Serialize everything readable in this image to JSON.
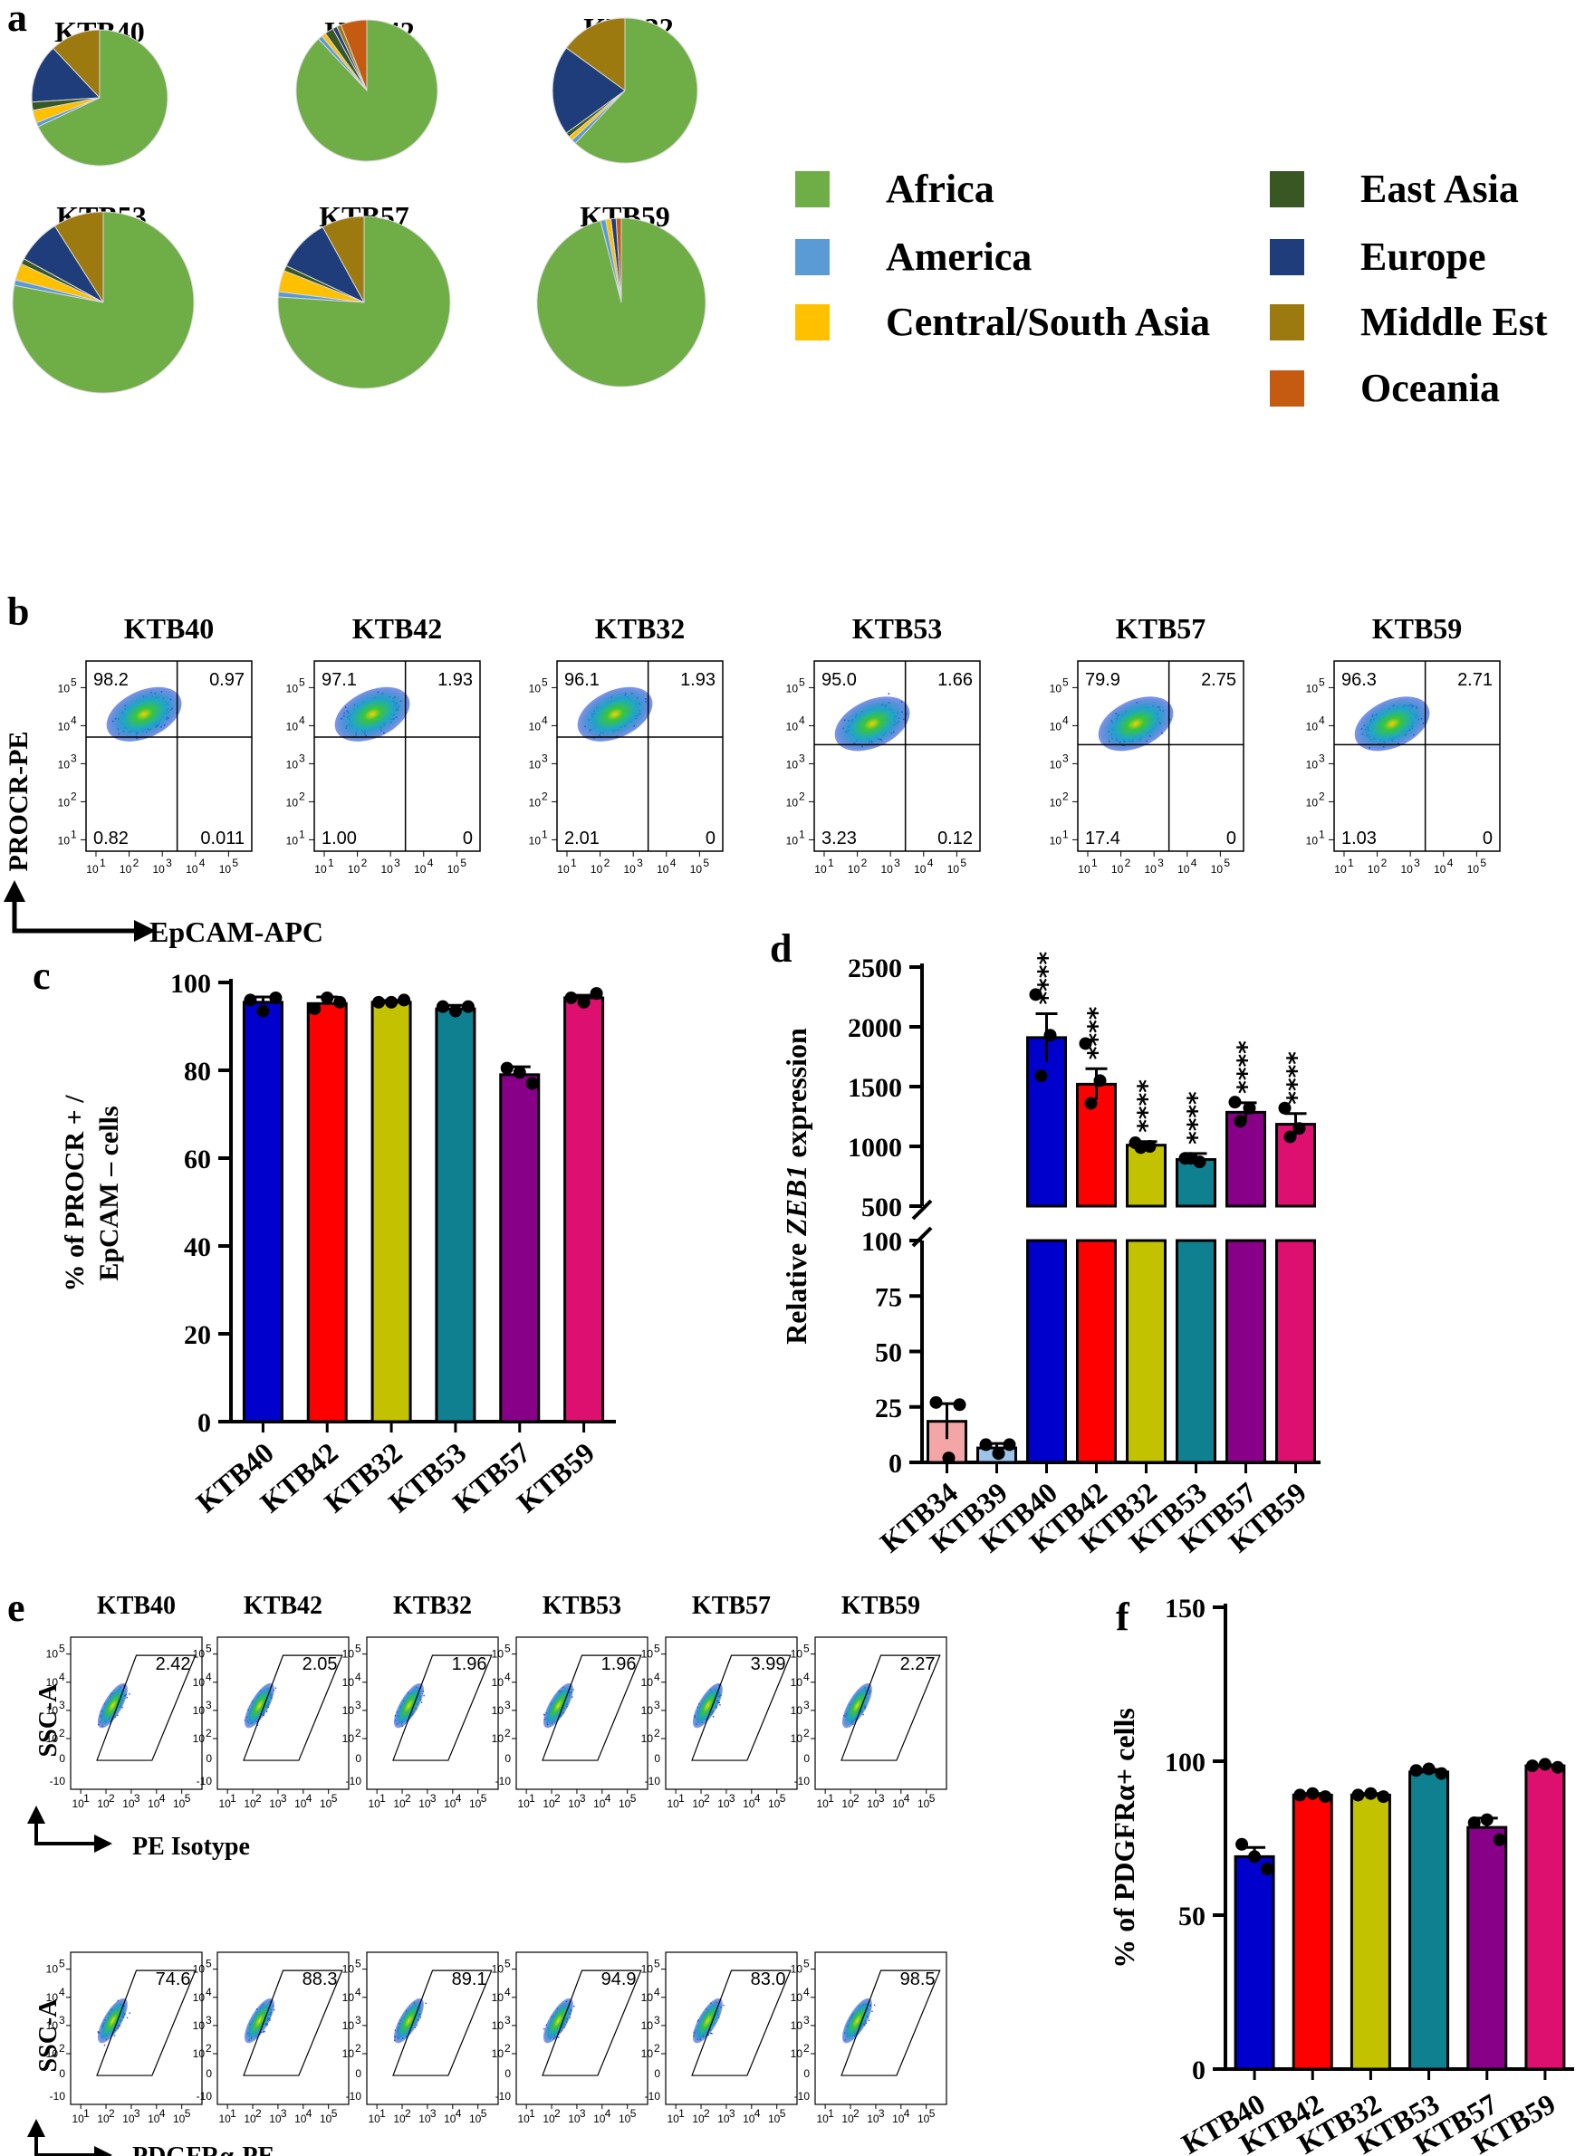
{
  "colors": {
    "Africa": "#6fad46",
    "America": "#5b9bd5",
    "Central/South Asia": "#ffc000",
    "East Asia": "#385723",
    "Europe": "#1f3d7a",
    "Middle Est": "#9c7a10",
    "Oceania": "#c55a11",
    "KTB40": "#0000cc",
    "KTB42": "#ff0000",
    "KTB32": "#c2c200",
    "KTB53": "#0f8090",
    "KTB57": "#880088",
    "KTB59": "#dd1070",
    "KTB34": "#f4a6a6",
    "KTB39": "#9dc3e6"
  },
  "panel_labels": {
    "a": "a",
    "b": "b",
    "c": "c",
    "d": "d",
    "e": "e",
    "f": "f"
  },
  "chart_data": [
    {
      "panel": "a",
      "type": "pie",
      "legend": [
        "Africa",
        "America",
        "Central/South Asia",
        "East Asia",
        "Europe",
        "Middle Est",
        "Oceania"
      ],
      "legend_placement": "right",
      "charts": [
        {
          "title": "KTB40",
          "values": {
            "Africa": 68,
            "America": 1,
            "Central/South Asia": 3,
            "East Asia": 2,
            "Europe": 14,
            "Middle Est": 12,
            "Oceania": 0
          }
        },
        {
          "title": "KTB42",
          "values": {
            "Africa": 88,
            "America": 1,
            "Central/South Asia": 1,
            "East Asia": 2,
            "Europe": 1,
            "Middle Est": 1,
            "Oceania": 6
          }
        },
        {
          "title": "KTB32",
          "values": {
            "Africa": 62,
            "America": 1,
            "Central/South Asia": 1,
            "East Asia": 1,
            "Europe": 20,
            "Middle Est": 15,
            "Oceania": 0
          }
        },
        {
          "title": "KTB53",
          "values": {
            "Africa": 78,
            "America": 1,
            "Central/South Asia": 3,
            "East Asia": 1,
            "Europe": 8,
            "Middle Est": 9,
            "Oceania": 0
          }
        },
        {
          "title": "KTB57",
          "values": {
            "Africa": 76,
            "America": 1,
            "Central/South Asia": 4,
            "East Asia": 1,
            "Europe": 10,
            "Middle Est": 8,
            "Oceania": 0
          }
        },
        {
          "title": "KTB59",
          "values": {
            "Africa": 96,
            "America": 1,
            "Central/South Asia": 1,
            "East Asia": 0,
            "Europe": 1,
            "Middle Est": 0,
            "Oceania": 1
          }
        }
      ]
    },
    {
      "panel": "b",
      "type": "scatter",
      "xlabel": "EpCAM-APC",
      "ylabel": "PROCR-PE",
      "axis_scale": "log",
      "xlim": [
        1,
        100000
      ],
      "ylim": [
        1,
        100000
      ],
      "tick_labels": [
        "10",
        "1",
        "10",
        "2",
        "10",
        "3",
        "10",
        "4",
        "10",
        "5"
      ],
      "plots": [
        {
          "title": "KTB40",
          "quadrants": [
            "98.2",
            "0.97",
            "0.82",
            "0.011"
          ]
        },
        {
          "title": "KTB42",
          "quadrants": [
            "97.1",
            "1.93",
            "1.00",
            "0"
          ]
        },
        {
          "title": "KTB32",
          "quadrants": [
            "96.1",
            "1.93",
            "2.01",
            "0"
          ]
        },
        {
          "title": "KTB53",
          "quadrants": [
            "95.0",
            "1.66",
            "3.23",
            "0.12"
          ]
        },
        {
          "title": "KTB57",
          "quadrants": [
            "79.9",
            "2.75",
            "17.4",
            "0"
          ]
        },
        {
          "title": "KTB59",
          "quadrants": [
            "96.3",
            "2.71",
            "1.03",
            "0"
          ]
        }
      ]
    },
    {
      "panel": "c",
      "type": "bar",
      "ylabel": "% of PROCR + / EpCAM – cells",
      "ylabel_lines": [
        "% of PROCR + /",
        "EpCAM – cells"
      ],
      "ylim": [
        0,
        100
      ],
      "yticks": [
        0,
        20,
        40,
        60,
        80,
        100
      ],
      "categories": [
        "KTB40",
        "KTB42",
        "KTB32",
        "KTB53",
        "KTB57",
        "KTB59"
      ],
      "values": [
        95.5,
        95.2,
        95.5,
        94,
        79,
        96.5
      ],
      "errors": [
        1.2,
        1.5,
        0.4,
        0.8,
        1.8,
        0.6
      ],
      "points": [
        [
          96,
          93.5,
          96.5
        ],
        [
          94,
          96.5,
          95.5
        ],
        [
          95.5,
          95.5,
          96
        ],
        [
          94.5,
          93.5,
          94.5
        ],
        [
          80.5,
          79.5,
          77
        ],
        [
          96.5,
          95.5,
          97.5
        ]
      ]
    },
    {
      "panel": "d",
      "type": "bar",
      "ylabel_prefix": "Relative",
      "ylabel_gene": "ZEB1",
      "ylabel_suffix": "expression",
      "axis_break": true,
      "lower_ylim": [
        0,
        100
      ],
      "upper_ylim": [
        500,
        2500
      ],
      "yticks_lower": [
        0,
        25,
        50,
        75,
        100
      ],
      "yticks_upper": [
        500,
        1000,
        1500,
        2000,
        2500
      ],
      "categories": [
        "KTB34",
        "KTB39",
        "KTB40",
        "KTB42",
        "KTB32",
        "KTB53",
        "KTB57",
        "KTB59"
      ],
      "values": [
        18.5,
        6.5,
        1910,
        1520,
        1010,
        890,
        1285,
        1185
      ],
      "errors": [
        8,
        2,
        200,
        130,
        30,
        50,
        80,
        90
      ],
      "points": [
        [
          27,
          2,
          26
        ],
        [
          8,
          4,
          8
        ],
        [
          2270,
          1930,
          1590
        ],
        [
          1860,
          1550,
          1360
        ],
        [
          1030,
          1000,
          990
        ],
        [
          900,
          870,
          900
        ],
        [
          1370,
          1320,
          1210
        ],
        [
          1320,
          1150,
          1080
        ]
      ],
      "significance": [
        "",
        "",
        "****",
        "****",
        "****",
        "****",
        "****",
        "****"
      ]
    },
    {
      "panel": "e",
      "type": "scatter",
      "axis_scale": "log",
      "ylabel": "SSC-A",
      "tick_labels": [
        "10",
        "1",
        "10",
        "2",
        "10",
        "3",
        "10",
        "4",
        "10",
        "5",
        "-10",
        "0"
      ],
      "rows": [
        {
          "xlabel": "PE Isotype",
          "plots": [
            {
              "title": "KTB40",
              "gate": "2.42"
            },
            {
              "title": "KTB42",
              "gate": "2.05"
            },
            {
              "title": "KTB32",
              "gate": "1.96"
            },
            {
              "title": "KTB53",
              "gate": "1.96"
            },
            {
              "title": "KTB57",
              "gate": "3.99"
            },
            {
              "title": "KTB59",
              "gate": "2.27"
            }
          ]
        },
        {
          "xlabel": "PDGFRα-PE",
          "plots": [
            {
              "title": "KTB40",
              "gate": "74.6"
            },
            {
              "title": "KTB42",
              "gate": "88.3"
            },
            {
              "title": "KTB32",
              "gate": "89.1"
            },
            {
              "title": "KTB53",
              "gate": "94.9"
            },
            {
              "title": "KTB57",
              "gate": "83.0"
            },
            {
              "title": "KTB59",
              "gate": "98.5"
            }
          ]
        }
      ]
    },
    {
      "panel": "f",
      "type": "bar",
      "ylabel": "% of PDGFRα+ cells",
      "ylim": [
        0,
        150
      ],
      "yticks": [
        0,
        50,
        100,
        150
      ],
      "categories": [
        "KTB40",
        "KTB42",
        "KTB32",
        "KTB53",
        "KTB57",
        "KTB59"
      ],
      "values": [
        69,
        89,
        89,
        96.5,
        78.5,
        98.5
      ],
      "errors": [
        3,
        0.5,
        0.5,
        0.8,
        3,
        0.3
      ],
      "points": [
        [
          73,
          69,
          65
        ],
        [
          89,
          89.5,
          88.5
        ],
        [
          89,
          89.5,
          88.5
        ],
        [
          97,
          97.5,
          96
        ],
        [
          80,
          81,
          74.5
        ],
        [
          98.5,
          99,
          98
        ]
      ]
    }
  ]
}
